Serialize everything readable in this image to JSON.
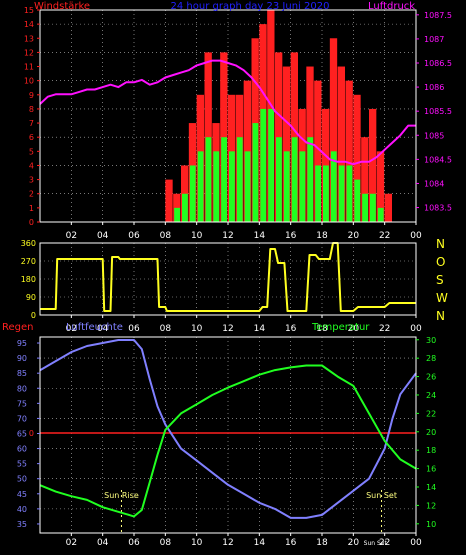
{
  "colors": {
    "wind": "#ff2020",
    "wind_avg": "#20ff20",
    "pressure": "#ff10ff",
    "wind_dir": "#ffff20",
    "humidity": "#8080ff",
    "temperature": "#20ff20",
    "rain": "#ff2020",
    "axis": "#ffffff",
    "grid": "#c0c0c0",
    "title": "#2020ff",
    "sun": "#ffff80"
  },
  "chart_data": [
    {
      "type": "bar",
      "name": "wind_pressure",
      "title": "24 hour graph day  23 Juni 2020",
      "left_label": "Windstärke",
      "right_label": "Luftdruck",
      "left_ticks": [
        "0",
        "1",
        "2",
        "3",
        "4",
        "5",
        "6",
        "7",
        "8",
        "9",
        "10",
        "11",
        "12",
        "13",
        "14",
        "15"
      ],
      "right_ticks": [
        "1083.5",
        "1084",
        "1084.5",
        "1085",
        "1085.5",
        "1086",
        "1086.5",
        "1087",
        "1087.5"
      ],
      "x_ticks": [
        "02",
        "04",
        "06",
        "08",
        "10",
        "12",
        "14",
        "16",
        "18",
        "20",
        "22",
        "00"
      ],
      "ylim_left": [
        0,
        15
      ],
      "ylim_right": [
        1083.2,
        1087.6
      ],
      "xlim": [
        0,
        24
      ],
      "pressure": {
        "x": [
          0,
          0.5,
          1,
          1.5,
          2,
          2.5,
          3,
          3.5,
          4,
          4.5,
          5,
          5.5,
          6,
          6.5,
          7,
          7.5,
          8,
          8.5,
          9,
          9.5,
          10,
          10.5,
          11,
          11.5,
          12,
          12.5,
          13,
          13.5,
          14,
          14.5,
          15,
          15.5,
          16,
          16.5,
          17,
          17.5,
          18,
          18.5,
          19,
          19.5,
          20,
          20.5,
          21,
          21.5,
          22,
          22.5,
          23,
          23.5,
          24
        ],
        "values": [
          1085.65,
          1085.8,
          1085.85,
          1085.85,
          1085.85,
          1085.9,
          1085.95,
          1085.95,
          1086.0,
          1086.05,
          1086.0,
          1086.1,
          1086.1,
          1086.15,
          1086.05,
          1086.1,
          1086.2,
          1086.25,
          1086.3,
          1086.35,
          1086.45,
          1086.5,
          1086.55,
          1086.55,
          1086.5,
          1086.45,
          1086.35,
          1086.2,
          1086.0,
          1085.75,
          1085.5,
          1085.35,
          1085.2,
          1085.0,
          1084.85,
          1084.8,
          1084.65,
          1084.5,
          1084.45,
          1084.45,
          1084.4,
          1084.45,
          1084.45,
          1084.55,
          1084.7,
          1084.85,
          1085.0,
          1085.2,
          1085.2
        ]
      },
      "wind_gust": {
        "x": [
          8,
          8.5,
          9,
          9.5,
          10,
          10.5,
          11,
          11.5,
          12,
          12.5,
          13,
          13.5,
          14,
          14.5,
          15,
          15.5,
          16,
          16.5,
          17,
          17.5,
          18,
          18.5,
          19,
          19.5,
          20,
          20.5,
          21,
          21.5,
          22
        ],
        "values": [
          3,
          2,
          4,
          7,
          9,
          12,
          7,
          12,
          9,
          9,
          10,
          13,
          14,
          15,
          12,
          11,
          12,
          8,
          11,
          10,
          8,
          13,
          11,
          10,
          9,
          6,
          8,
          5,
          2
        ]
      },
      "wind_avg": {
        "x": [
          8,
          8.5,
          9,
          9.5,
          10,
          10.5,
          11,
          11.5,
          12,
          12.5,
          13,
          13.5,
          14,
          14.5,
          15,
          15.5,
          16,
          16.5,
          17,
          17.5,
          18,
          18.5,
          19,
          19.5,
          20,
          20.5,
          21,
          21.5,
          22
        ],
        "values": [
          0,
          1,
          2,
          4,
          5,
          6,
          5,
          6,
          5,
          6,
          5,
          7,
          8,
          8,
          6,
          5,
          6,
          5,
          6,
          4,
          4,
          5,
          4,
          4,
          3,
          2,
          2,
          1,
          0
        ]
      }
    },
    {
      "type": "line",
      "name": "wind_direction",
      "right_ticks": [
        "N",
        "W",
        "S",
        "O",
        "N"
      ],
      "left_ticks": [
        "0",
        "90",
        "180",
        "270",
        "360"
      ],
      "ylim": [
        0,
        360
      ],
      "x_ticks": [
        "02",
        "04",
        "06",
        "08",
        "10",
        "12",
        "14",
        "16",
        "18",
        "20",
        "22",
        "00"
      ],
      "x": [
        0,
        1.0,
        1.1,
        4.0,
        4.1,
        4.5,
        4.6,
        5.0,
        5.1,
        7.5,
        7.6,
        8.0,
        8.1,
        14.0,
        14.2,
        14.5,
        14.7,
        15.0,
        15.2,
        15.6,
        15.8,
        17.0,
        17.2,
        17.6,
        17.8,
        18.5,
        18.7,
        19.0,
        19.2,
        20.0,
        20.3,
        22.0,
        22.3,
        24
      ],
      "values": [
        30,
        30,
        280,
        280,
        20,
        20,
        290,
        290,
        280,
        280,
        40,
        40,
        20,
        20,
        40,
        40,
        330,
        330,
        260,
        260,
        20,
        20,
        300,
        300,
        280,
        280,
        360,
        360,
        20,
        20,
        40,
        40,
        60,
        60
      ]
    },
    {
      "type": "line",
      "name": "humidity_temperature",
      "left_label": "Regen",
      "center_label": "Luftfeuchte",
      "right_label": "Temperatur",
      "left_ticks": [
        "35",
        "40",
        "45",
        "50",
        "55",
        "60",
        "65",
        "70",
        "75",
        "80",
        "85",
        "90",
        "95"
      ],
      "right_ticks": [
        "10",
        "12",
        "14",
        "16",
        "18",
        "20",
        "22",
        "24",
        "26",
        "28",
        "30"
      ],
      "rain_tick": "0",
      "ylim_left": [
        32,
        97
      ],
      "ylim_right": [
        9,
        30.3
      ],
      "x_ticks": [
        "02",
        "04",
        "06",
        "08",
        "10",
        "12",
        "14",
        "16",
        "18",
        "20",
        "22",
        "00"
      ],
      "humidity": {
        "x": [
          0,
          1,
          2,
          3,
          4,
          5,
          6,
          6.5,
          7,
          7.5,
          8,
          9,
          10,
          11,
          12,
          13,
          14,
          15,
          16,
          17,
          18,
          19,
          20,
          21,
          22,
          22.5,
          23,
          24
        ],
        "values": [
          86,
          89,
          92,
          94,
          95,
          96,
          96,
          93,
          83,
          74,
          68,
          60,
          56,
          52,
          48,
          45,
          42,
          40,
          37,
          37,
          38,
          42,
          46,
          50,
          60,
          70,
          78,
          85
        ]
      },
      "temperature": {
        "x": [
          0,
          1,
          2,
          3,
          4,
          5,
          6,
          6.5,
          7,
          7.5,
          8,
          9,
          10,
          11,
          12,
          13,
          14,
          15,
          16,
          17,
          18,
          19,
          20,
          21,
          22,
          23,
          24
        ],
        "values": [
          14.2,
          13.5,
          13.0,
          12.6,
          11.8,
          11.3,
          10.8,
          11.5,
          14.5,
          17.5,
          20.2,
          22.0,
          23.0,
          24.0,
          24.8,
          25.5,
          26.2,
          26.7,
          27.0,
          27.2,
          27.2,
          26.0,
          25.0,
          22.0,
          19.0,
          17.0,
          16.0
        ]
      },
      "rain": {
        "value": 0
      },
      "sun_rise_label": "Sun Rise",
      "sun_set_label": "Sun Set",
      "sun_set_small": "Sun Set"
    }
  ]
}
